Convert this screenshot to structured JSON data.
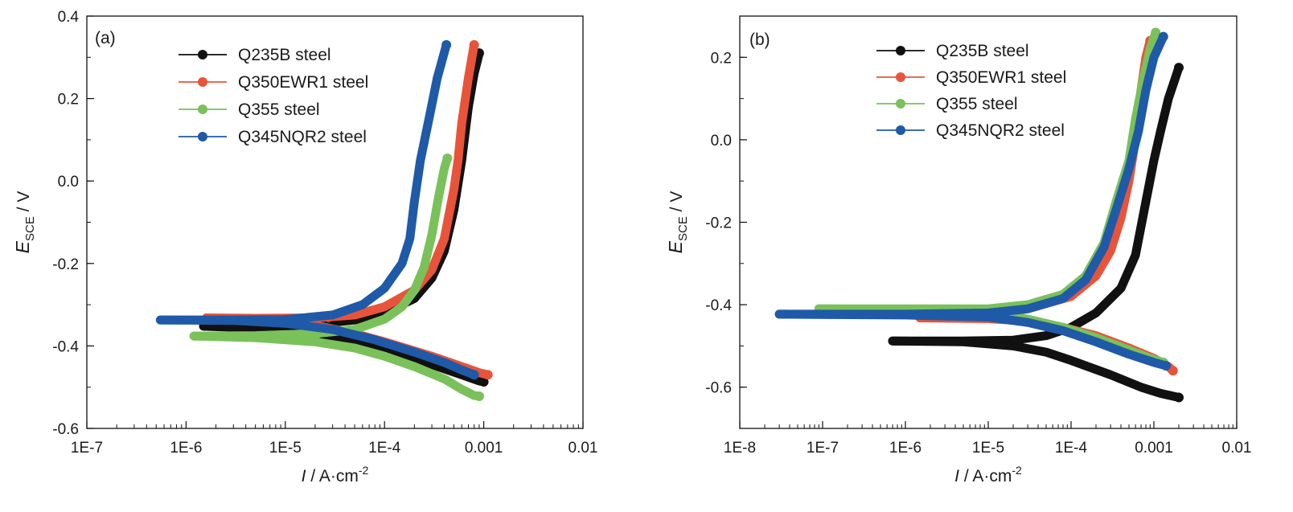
{
  "colors": {
    "Q235B": "#111111",
    "Q350EWR1": "#e8543a",
    "Q355": "#7ac15a",
    "Q345NQR2": "#1f5aa8"
  },
  "chart_data": [
    {
      "type": "line",
      "panel_label": "(a)",
      "xlabel_italic": "I",
      "xlabel_rest": " / A·cm",
      "xlabel_sup": "-2",
      "ylabel_italic": "E",
      "ylabel_sub": "SCE",
      "ylabel_rest": " / V",
      "x_scale": "log",
      "xlim": [
        1e-07,
        0.01
      ],
      "ylim": [
        -0.6,
        0.4
      ],
      "x_ticks": [
        1e-07,
        1e-06,
        1e-05,
        0.0001,
        0.001,
        0.01
      ],
      "x_tick_labels": [
        "1E-7",
        "1E-6",
        "1E-5",
        "1E-4",
        "0.001",
        "0.01"
      ],
      "y_ticks": [
        -0.6,
        -0.4,
        -0.2,
        0.0,
        0.2,
        0.4
      ],
      "y_tick_labels": [
        "-0.6",
        "-0.4",
        "-0.2",
        "0.0",
        "0.2",
        "0.4"
      ],
      "legend_position": "top-left",
      "series": [
        {
          "name": "Q235B steel",
          "color_key": "Q235B",
          "anodic": [
            [
              1.5e-06,
              -0.352
            ],
            [
              5e-06,
              -0.351
            ],
            [
              2e-05,
              -0.347
            ],
            [
              5e-05,
              -0.337
            ],
            [
              0.0001,
              -0.32
            ],
            [
              0.0002,
              -0.285
            ],
            [
              0.0003,
              -0.235
            ],
            [
              0.0004,
              -0.17
            ],
            [
              0.0005,
              -0.07
            ],
            [
              0.0006,
              0.05
            ],
            [
              0.0007,
              0.18
            ],
            [
              0.0008,
              0.26
            ],
            [
              0.0009,
              0.31
            ]
          ],
          "cathodic": [
            [
              1.5e-06,
              -0.352
            ],
            [
              5e-06,
              -0.357
            ],
            [
              2e-05,
              -0.37
            ],
            [
              5e-05,
              -0.39
            ],
            [
              0.0001,
              -0.41
            ],
            [
              0.0003,
              -0.445
            ],
            [
              0.0006,
              -0.47
            ],
            [
              0.0009,
              -0.485
            ],
            [
              0.001,
              -0.487
            ]
          ]
        },
        {
          "name": "Q350EWR1 steel",
          "color_key": "Q350EWR1",
          "anodic": [
            [
              1.6e-06,
              -0.332
            ],
            [
              5e-06,
              -0.333
            ],
            [
              2e-05,
              -0.332
            ],
            [
              5e-05,
              -0.325
            ],
            [
              0.0001,
              -0.305
            ],
            [
              0.0002,
              -0.265
            ],
            [
              0.0003,
              -0.215
            ],
            [
              0.0004,
              -0.14
            ],
            [
              0.0005,
              -0.02
            ],
            [
              0.00055,
              0.05
            ],
            [
              0.0006,
              0.14
            ],
            [
              0.0007,
              0.25
            ],
            [
              0.0008,
              0.33
            ]
          ],
          "cathodic": [
            [
              1.6e-06,
              -0.332
            ],
            [
              5e-06,
              -0.337
            ],
            [
              2e-05,
              -0.35
            ],
            [
              5e-05,
              -0.37
            ],
            [
              0.0001,
              -0.39
            ],
            [
              0.0003,
              -0.425
            ],
            [
              0.0006,
              -0.45
            ],
            [
              0.0009,
              -0.465
            ],
            [
              0.0011,
              -0.47
            ]
          ]
        },
        {
          "name": "Q355 steel",
          "color_key": "Q355",
          "anodic": [
            [
              1.2e-06,
              -0.376
            ],
            [
              5e-06,
              -0.375
            ],
            [
              2e-05,
              -0.37
            ],
            [
              5e-05,
              -0.36
            ],
            [
              0.0001,
              -0.335
            ],
            [
              0.00015,
              -0.305
            ],
            [
              0.0002,
              -0.265
            ],
            [
              0.00025,
              -0.21
            ],
            [
              0.0003,
              -0.13
            ],
            [
              0.00035,
              -0.04
            ],
            [
              0.0004,
              0.03
            ],
            [
              0.00043,
              0.055
            ]
          ],
          "cathodic": [
            [
              1.2e-06,
              -0.376
            ],
            [
              5e-06,
              -0.38
            ],
            [
              2e-05,
              -0.39
            ],
            [
              5e-05,
              -0.405
            ],
            [
              0.0001,
              -0.425
            ],
            [
              0.0002,
              -0.45
            ],
            [
              0.0004,
              -0.48
            ],
            [
              0.0006,
              -0.505
            ],
            [
              0.0008,
              -0.52
            ],
            [
              0.0009,
              -0.522
            ]
          ]
        },
        {
          "name": "Q345NQR2 steel",
          "color_key": "Q345NQR2",
          "anodic": [
            [
              5.5e-07,
              -0.337
            ],
            [
              2e-06,
              -0.337
            ],
            [
              1e-05,
              -0.336
            ],
            [
              3e-05,
              -0.325
            ],
            [
              6e-05,
              -0.3
            ],
            [
              0.0001,
              -0.26
            ],
            [
              0.00015,
              -0.2
            ],
            [
              0.00018,
              -0.14
            ],
            [
              0.0002,
              -0.05
            ],
            [
              0.00023,
              0.05
            ],
            [
              0.00028,
              0.15
            ],
            [
              0.00034,
              0.25
            ],
            [
              0.00042,
              0.33
            ]
          ],
          "cathodic": [
            [
              5.5e-07,
              -0.337
            ],
            [
              3e-06,
              -0.338
            ],
            [
              1e-05,
              -0.345
            ],
            [
              3e-05,
              -0.36
            ],
            [
              8e-05,
              -0.385
            ],
            [
              0.0002,
              -0.415
            ],
            [
              0.0004,
              -0.44
            ],
            [
              0.0006,
              -0.458
            ],
            [
              0.0008,
              -0.47
            ]
          ]
        }
      ]
    },
    {
      "type": "line",
      "panel_label": "(b)",
      "xlabel_italic": "I",
      "xlabel_rest": " / A·cm",
      "xlabel_sup": "-2",
      "ylabel_italic": "E",
      "ylabel_sub": "SCE",
      "ylabel_rest": " / V",
      "x_scale": "log",
      "xlim": [
        1e-08,
        0.01
      ],
      "ylim": [
        -0.7,
        0.3
      ],
      "x_ticks": [
        1e-08,
        1e-07,
        1e-06,
        1e-05,
        0.0001,
        0.001,
        0.01
      ],
      "x_tick_labels": [
        "1E-8",
        "1E-7",
        "1E-6",
        "1E-5",
        "1E-4",
        "0.001",
        "0.01"
      ],
      "y_ticks": [
        -0.6,
        -0.4,
        -0.2,
        0.0,
        0.2
      ],
      "y_tick_labels": [
        "-0.6",
        "-0.4",
        "-0.2",
        "0.0",
        "0.2"
      ],
      "legend_position": "top-center",
      "series": [
        {
          "name": "Q235B steel",
          "color_key": "Q235B",
          "anodic": [
            [
              7e-07,
              -0.488
            ],
            [
              5e-06,
              -0.488
            ],
            [
              2e-05,
              -0.486
            ],
            [
              5e-05,
              -0.475
            ],
            [
              0.0001,
              -0.455
            ],
            [
              0.0002,
              -0.42
            ],
            [
              0.0004,
              -0.36
            ],
            [
              0.0006,
              -0.28
            ],
            [
              0.0008,
              -0.15
            ],
            [
              0.001,
              -0.05
            ],
            [
              0.0012,
              0.02
            ],
            [
              0.0015,
              0.1
            ],
            [
              0.002,
              0.175
            ]
          ],
          "cathodic": [
            [
              7e-07,
              -0.488
            ],
            [
              5e-06,
              -0.49
            ],
            [
              2e-05,
              -0.5
            ],
            [
              5e-05,
              -0.515
            ],
            [
              0.0001,
              -0.535
            ],
            [
              0.0003,
              -0.57
            ],
            [
              0.0007,
              -0.6
            ],
            [
              0.0012,
              -0.615
            ],
            [
              0.002,
              -0.625
            ]
          ]
        },
        {
          "name": "Q350EWR1 steel",
          "color_key": "Q350EWR1",
          "anodic": [
            [
              1.5e-06,
              -0.432
            ],
            [
              5e-06,
              -0.43
            ],
            [
              1e-05,
              -0.425
            ],
            [
              3e-05,
              -0.41
            ],
            [
              0.0001,
              -0.38
            ],
            [
              0.0002,
              -0.33
            ],
            [
              0.0003,
              -0.27
            ],
            [
              0.0004,
              -0.19
            ],
            [
              0.0005,
              -0.1
            ],
            [
              0.0006,
              0.0
            ],
            [
              0.0007,
              0.12
            ],
            [
              0.0008,
              0.2
            ],
            [
              0.0009,
              0.24
            ]
          ],
          "cathodic": [
            [
              1.5e-06,
              -0.432
            ],
            [
              1e-05,
              -0.434
            ],
            [
              3e-05,
              -0.44
            ],
            [
              8e-05,
              -0.455
            ],
            [
              0.0002,
              -0.475
            ],
            [
              0.0005,
              -0.505
            ],
            [
              0.001,
              -0.53
            ],
            [
              0.0015,
              -0.55
            ],
            [
              0.0017,
              -0.56
            ]
          ]
        },
        {
          "name": "Q355 steel",
          "color_key": "Q355",
          "anodic": [
            [
              9e-08,
              -0.41
            ],
            [
              1e-06,
              -0.41
            ],
            [
              1e-05,
              -0.41
            ],
            [
              3e-05,
              -0.4
            ],
            [
              8e-05,
              -0.375
            ],
            [
              0.00015,
              -0.33
            ],
            [
              0.00025,
              -0.25
            ],
            [
              0.00035,
              -0.15
            ],
            [
              0.0005,
              -0.05
            ],
            [
              0.0006,
              0.05
            ],
            [
              0.00075,
              0.15
            ],
            [
              0.0009,
              0.22
            ],
            [
              0.00105,
              0.26
            ]
          ],
          "cathodic": [
            [
              9e-08,
              -0.41
            ],
            [
              1e-06,
              -0.412
            ],
            [
              1e-05,
              -0.42
            ],
            [
              3e-05,
              -0.435
            ],
            [
              8e-05,
              -0.455
            ],
            [
              0.0002,
              -0.48
            ],
            [
              0.0005,
              -0.51
            ],
            [
              0.0009,
              -0.53
            ],
            [
              0.0013,
              -0.54
            ]
          ]
        },
        {
          "name": "Q345NQR2 steel",
          "color_key": "Q345NQR2",
          "anodic": [
            [
              3e-08,
              -0.423
            ],
            [
              1e-06,
              -0.423
            ],
            [
              1e-05,
              -0.42
            ],
            [
              3e-05,
              -0.41
            ],
            [
              8e-05,
              -0.385
            ],
            [
              0.00015,
              -0.34
            ],
            [
              0.00025,
              -0.26
            ],
            [
              0.00035,
              -0.17
            ],
            [
              0.0005,
              -0.07
            ],
            [
              0.00065,
              0.02
            ],
            [
              0.0008,
              0.12
            ],
            [
              0.001,
              0.2
            ],
            [
              0.0013,
              0.25
            ]
          ],
          "cathodic": [
            [
              3e-08,
              -0.423
            ],
            [
              1e-06,
              -0.425
            ],
            [
              1e-05,
              -0.43
            ],
            [
              3e-05,
              -0.443
            ],
            [
              8e-05,
              -0.463
            ],
            [
              0.0002,
              -0.49
            ],
            [
              0.0005,
              -0.52
            ],
            [
              0.001,
              -0.54
            ],
            [
              0.0014,
              -0.548
            ]
          ]
        }
      ]
    }
  ]
}
